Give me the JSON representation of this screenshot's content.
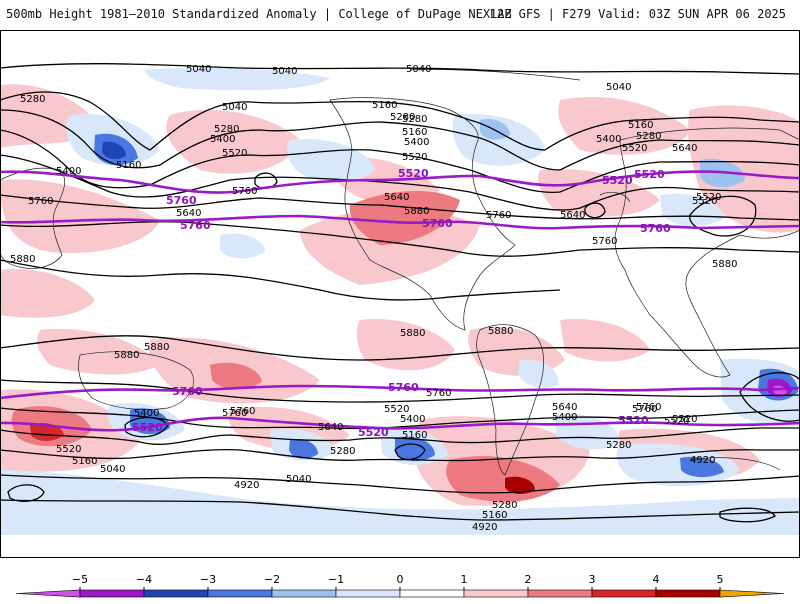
{
  "header": {
    "title_left": "500mb Height 1981–2010 Standardized Anomaly | College of DuPage NEXLAB",
    "title_right": "12Z GFS | F279 Valid: 03Z SUN APR 06 2025"
  },
  "colors": {
    "background": "#ffffff",
    "contour": "#000000",
    "highlight_contour": "#9a1ac8",
    "coastline": "#222222"
  },
  "colorbar": {
    "ticks": [
      "−5",
      "−4",
      "−3",
      "−2",
      "−1",
      "0",
      "1",
      "2",
      "3",
      "4",
      "5"
    ],
    "colors": [
      "#d050e8",
      "#9a18c8",
      "#1f44b8",
      "#4a78e0",
      "#9ec2f0",
      "#d8e8fa",
      "#ffffff",
      "#f8c8cc",
      "#ec7a80",
      "#d42828",
      "#a80000",
      "#f0a400"
    ]
  },
  "contour_labels": [
    {
      "text": "5040"
    },
    {
      "text": "5040"
    },
    {
      "text": "5040"
    },
    {
      "text": "5040"
    },
    {
      "text": "5040"
    },
    {
      "text": "5280"
    },
    {
      "text": "5160"
    },
    {
      "text": "5280"
    },
    {
      "text": "5160"
    },
    {
      "text": "5160"
    },
    {
      "text": "5280"
    },
    {
      "text": "5400"
    },
    {
      "text": "5520"
    },
    {
      "text": "5280"
    },
    {
      "text": "5400"
    },
    {
      "text": "5520"
    },
    {
      "text": "5640"
    },
    {
      "text": "5400"
    },
    {
      "text": "5520"
    },
    {
      "text": "5160"
    },
    {
      "text": "5280"
    },
    {
      "text": "5400"
    },
    {
      "text": "5520"
    },
    {
      "text": "5640"
    },
    {
      "text": "5760"
    },
    {
      "text": "5640"
    },
    {
      "text": "5760"
    },
    {
      "text": "5880"
    },
    {
      "text": "5760"
    },
    {
      "text": "5640"
    },
    {
      "text": "5760"
    },
    {
      "text": "5880"
    },
    {
      "text": "5520"
    },
    {
      "text": "5760"
    },
    {
      "text": "5760"
    },
    {
      "text": "5880"
    },
    {
      "text": "5880"
    },
    {
      "text": "5880"
    },
    {
      "text": "5880"
    },
    {
      "text": "5880"
    },
    {
      "text": "5760"
    },
    {
      "text": "5760"
    },
    {
      "text": "5400"
    },
    {
      "text": "5520"
    },
    {
      "text": "5640"
    },
    {
      "text": "5520"
    },
    {
      "text": "5400"
    },
    {
      "text": "5160"
    },
    {
      "text": "5640"
    },
    {
      "text": "5400"
    },
    {
      "text": "5520"
    },
    {
      "text": "5760"
    },
    {
      "text": "5280"
    },
    {
      "text": "5160"
    },
    {
      "text": "5040"
    },
    {
      "text": "5280"
    },
    {
      "text": "5040"
    },
    {
      "text": "4920"
    },
    {
      "text": "5280"
    },
    {
      "text": "5160"
    },
    {
      "text": "4920"
    },
    {
      "text": "4920"
    },
    {
      "text": "5520"
    }
  ],
  "highlight_labels": [
    {
      "text": "5520"
    },
    {
      "text": "5520"
    },
    {
      "text": "5520"
    },
    {
      "text": "5760"
    },
    {
      "text": "5760"
    },
    {
      "text": "5760"
    },
    {
      "text": "5760"
    },
    {
      "text": "5760"
    },
    {
      "text": "5760"
    },
    {
      "text": "5520"
    },
    {
      "text": "5520"
    },
    {
      "text": "5520"
    }
  ]
}
